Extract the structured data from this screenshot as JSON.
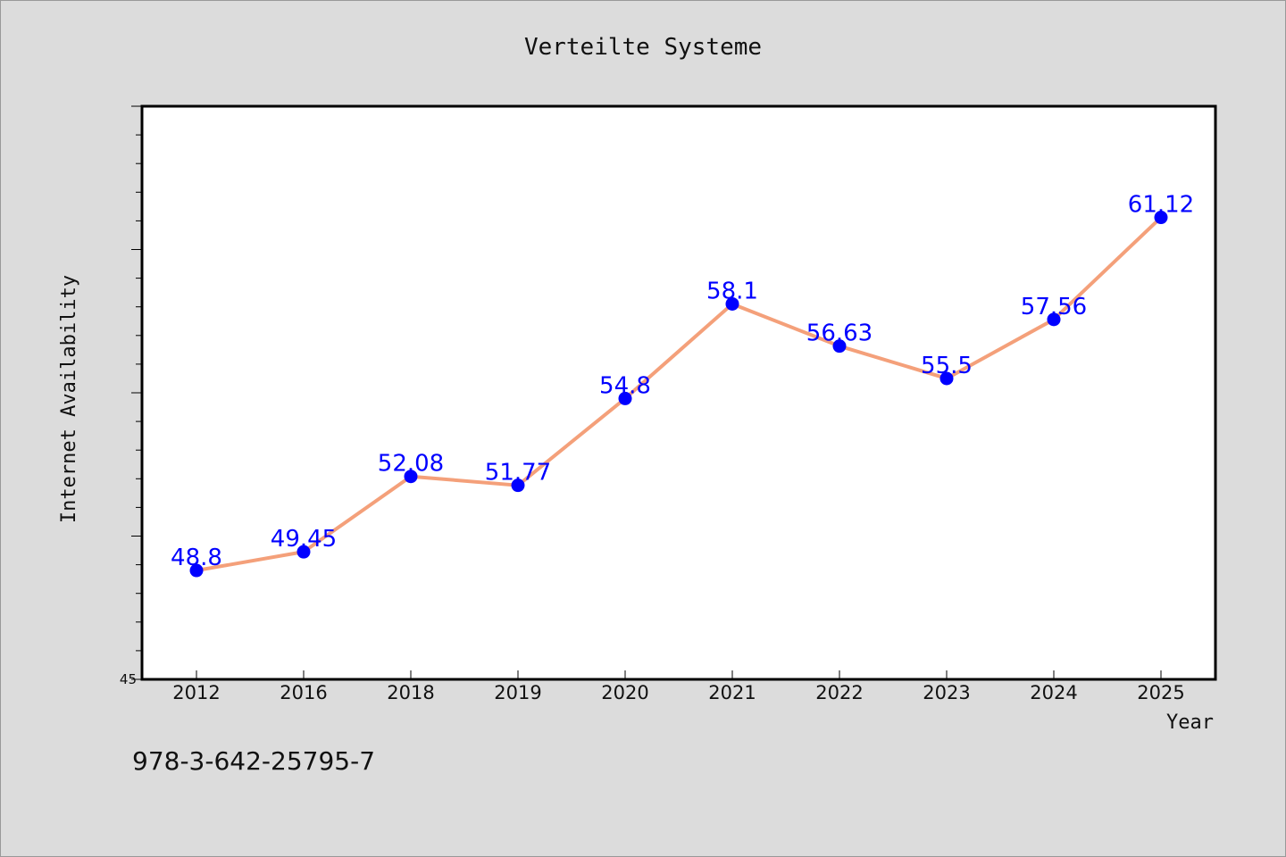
{
  "chart_data": {
    "type": "line",
    "title": "Verteilte Systeme",
    "xlabel": "Year",
    "ylabel": "Internet Availability",
    "categories": [
      "2012",
      "2016",
      "2018",
      "2019",
      "2020",
      "2021",
      "2022",
      "2023",
      "2024",
      "2025"
    ],
    "series": [
      {
        "values": [
          48.8,
          49.45,
          52.08,
          51.77,
          54.8,
          58.1,
          56.63,
          55.5,
          57.56,
          61.12
        ],
        "data_labels": [
          "48.8",
          "49.45",
          "52.08",
          "51.77",
          "54.8",
          "58.1",
          "56.63",
          "55.5",
          "57.56",
          "61.12"
        ]
      }
    ],
    "ylim": [
      45,
      65
    ],
    "y_tick_labels": [
      "45"
    ],
    "grid": false,
    "legend": "none",
    "colors": {
      "line": "#f4a07a",
      "marker": "#0000ff",
      "data_label": "#0000ff",
      "plot_background": "#ffffff",
      "figure_background": "#dcdcdc"
    }
  },
  "footer": {
    "isbn": "978-3-642-25795-7"
  }
}
